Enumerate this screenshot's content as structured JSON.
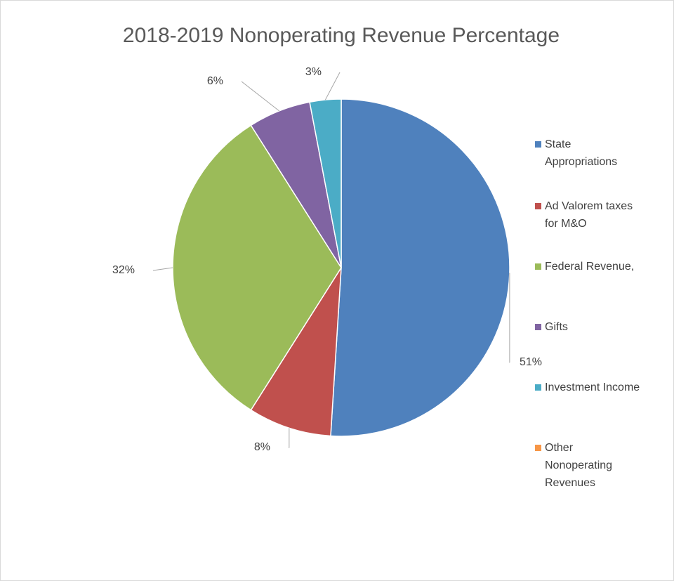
{
  "chart_data": {
    "type": "pie",
    "title": "2018-2019 Nonoperating Revenue Percentage",
    "categories": [
      "State Appropriations",
      "Ad Valorem taxes for M&O",
      "Federal Revenue,",
      "Gifts",
      "Investment Income",
      "Other Nonoperating Revenues"
    ],
    "values": [
      51,
      8,
      32,
      6,
      3,
      0
    ],
    "value_labels": [
      "51%",
      "8%",
      "32%",
      "6%",
      "3%",
      null
    ],
    "colors": [
      "#4f81bd",
      "#c0504d",
      "#9bbb59",
      "#8064a2",
      "#4bacc6",
      "#f79646"
    ],
    "legend": "right"
  }
}
